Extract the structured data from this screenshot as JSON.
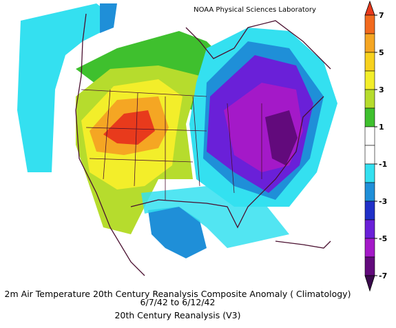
{
  "credit": "NOAA Physical Sciences Laboratory",
  "colorbar": {
    "ticks": [
      7,
      5,
      3,
      1,
      -1,
      -3,
      -5,
      -7
    ],
    "lim": [
      -7,
      7
    ],
    "colors": [
      "#e83a1c",
      "#f26a1e",
      "#f5a623",
      "#f7d11e",
      "#f3ee2a",
      "#b6dc2d",
      "#3fc02e",
      "#ffffff",
      "#ffffff",
      "#34e0f0",
      "#1f8fd8",
      "#2030c8",
      "#6a20d8",
      "#a419c8",
      "#620a7c",
      "#3a0a4c"
    ]
  },
  "caption": {
    "line1": "2m Air Temperature 20th Century Reanalysis Composite Anomaly ( Climatology)",
    "line2": "6/7/42  to 6/12/42",
    "line3": "20th Century Reanalysis (V3)"
  }
}
